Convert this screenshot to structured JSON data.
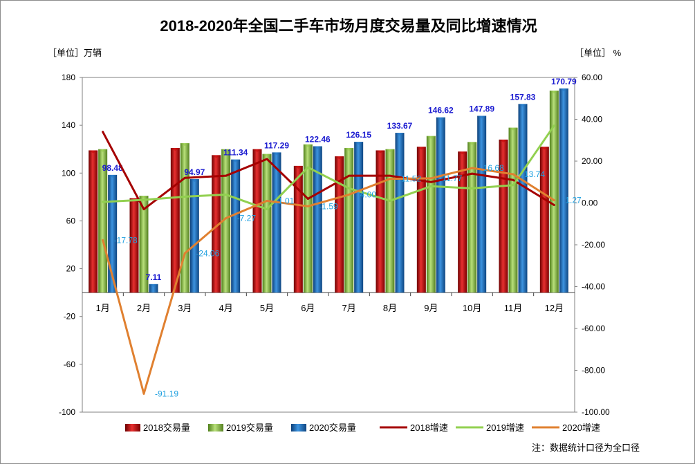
{
  "chart_data": {
    "type": "bar",
    "title": "2018-2020年全国二手车市场月度交易量及同比增速情况",
    "left_axis_unit": "［单位］万辆",
    "right_axis_unit": "［单位］ %",
    "note": "注：数据统计口径为全口径",
    "categories": [
      "1月",
      "2月",
      "3月",
      "4月",
      "5月",
      "6月",
      "7月",
      "8月",
      "9月",
      "10月",
      "11月",
      "12月"
    ],
    "ylim_left": [
      -100,
      180
    ],
    "yticks_left": [
      "180",
      "140",
      "100",
      "60",
      "20",
      "-20",
      "-60",
      "-100"
    ],
    "ylim_right": [
      -100,
      60
    ],
    "yticks_right": [
      "60.00",
      "40.00",
      "20.00",
      "0.00",
      "-20.00",
      "-40.00",
      "-60.00",
      "-80.00",
      "-100.00"
    ],
    "bar_series": [
      {
        "name": "2018交易量",
        "color": "#c00000",
        "values": [
          119,
          79,
          121,
          115,
          120,
          106,
          114,
          119,
          122,
          118,
          128,
          122
        ]
      },
      {
        "name": "2019交易量",
        "color": "#8cc63e",
        "values": [
          120,
          81,
          125,
          120,
          116,
          124,
          121,
          120,
          131,
          126,
          138,
          169
        ]
      },
      {
        "name": "2020交易量",
        "color": "#1f73c4",
        "values": [
          98.48,
          7.11,
          94.97,
          111.34,
          117.29,
          122.46,
          126.15,
          133.67,
          146.62,
          147.89,
          157.83,
          170.79
        ],
        "labels": [
          "98.48",
          "7.11",
          "94.97",
          "111.34",
          "117.29",
          "122.46",
          "126.15",
          "133.67",
          "146.62",
          "147.89",
          "157.83",
          "170.79"
        ]
      }
    ],
    "line_series": [
      {
        "name": "2018增速",
        "color": "#a50000",
        "values": [
          34,
          -3,
          12,
          13,
          21,
          2,
          13,
          13,
          10,
          14,
          11,
          -1
        ]
      },
      {
        "name": "2019增速",
        "color": "#92d050",
        "values": [
          0.5,
          1.5,
          3,
          4,
          -3,
          17,
          7,
          1,
          8,
          7,
          8.5,
          37
        ]
      },
      {
        "name": "2020增速",
        "color": "#e08030",
        "values": [
          -17.78,
          -91.19,
          -24.06,
          -7.27,
          1.01,
          -1.59,
          4.0,
          11.52,
          11.77,
          16.68,
          13.74,
          1.27
        ],
        "labels": [
          "-17.78",
          "-91.19",
          "-24.06",
          "-7.27",
          "1.01",
          "-1.59",
          "4.00",
          "11.52",
          "11.77",
          "16.68",
          "13.74",
          "1.27"
        ]
      }
    ],
    "grid": false,
    "legend_position": "bottom"
  }
}
